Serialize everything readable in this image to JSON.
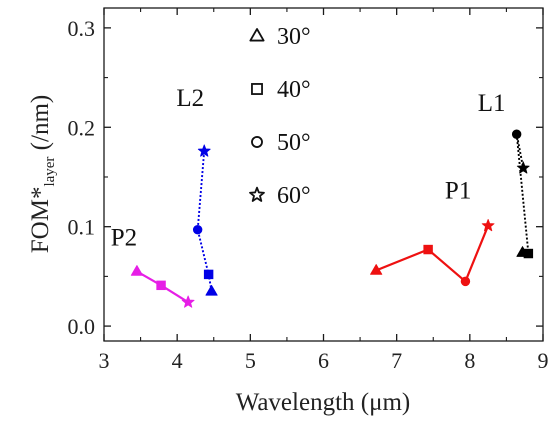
{
  "chart_data": {
    "type": "line",
    "xlabel": "Wavelength (μm)",
    "ylabel": {
      "main": "FOM*",
      "subscript": "layer",
      "suffix": " (/nm)"
    },
    "xlim": [
      3,
      9
    ],
    "ylim": [
      -0.015,
      0.32
    ],
    "x_ticks": [
      "3",
      "4",
      "5",
      "6",
      "7",
      "8",
      "9"
    ],
    "y_ticks": [
      "0.0",
      "0.1",
      "0.2",
      "0.3"
    ],
    "grid": false,
    "legend_position": "top-center",
    "legend": [
      {
        "marker": "triangle",
        "label": "30°"
      },
      {
        "marker": "square",
        "label": "40°"
      },
      {
        "marker": "circle",
        "label": "50°"
      },
      {
        "marker": "star",
        "label": "60°"
      }
    ],
    "series": [
      {
        "name": "P2",
        "color": "#e61ee6",
        "dash": "solid",
        "points": [
          {
            "x": 3.45,
            "y": 0.055,
            "marker": "triangle"
          },
          {
            "x": 3.78,
            "y": 0.041,
            "marker": "square"
          },
          {
            "x": 4.15,
            "y": 0.024,
            "marker": "star"
          }
        ]
      },
      {
        "name": "L2",
        "color": "#0000e6",
        "dash": "dotted",
        "points": [
          {
            "x": 4.47,
            "y": 0.035,
            "marker": "triangle"
          },
          {
            "x": 4.43,
            "y": 0.052,
            "marker": "square"
          },
          {
            "x": 4.28,
            "y": 0.097,
            "marker": "circle"
          },
          {
            "x": 4.37,
            "y": 0.176,
            "marker": "star"
          }
        ]
      },
      {
        "name": "P1",
        "color": "#ee1111",
        "dash": "solid",
        "points": [
          {
            "x": 6.72,
            "y": 0.056,
            "marker": "triangle"
          },
          {
            "x": 7.43,
            "y": 0.077,
            "marker": "square"
          },
          {
            "x": 7.94,
            "y": 0.045,
            "marker": "circle"
          },
          {
            "x": 8.25,
            "y": 0.101,
            "marker": "star"
          }
        ]
      },
      {
        "name": "L1",
        "color": "#000000",
        "dash": "dotted",
        "points": [
          {
            "x": 8.72,
            "y": 0.074,
            "marker": "triangle"
          },
          {
            "x": 8.8,
            "y": 0.073,
            "marker": "square"
          },
          {
            "x": 8.64,
            "y": 0.193,
            "marker": "circle"
          },
          {
            "x": 8.73,
            "y": 0.159,
            "marker": "star"
          }
        ]
      }
    ]
  }
}
